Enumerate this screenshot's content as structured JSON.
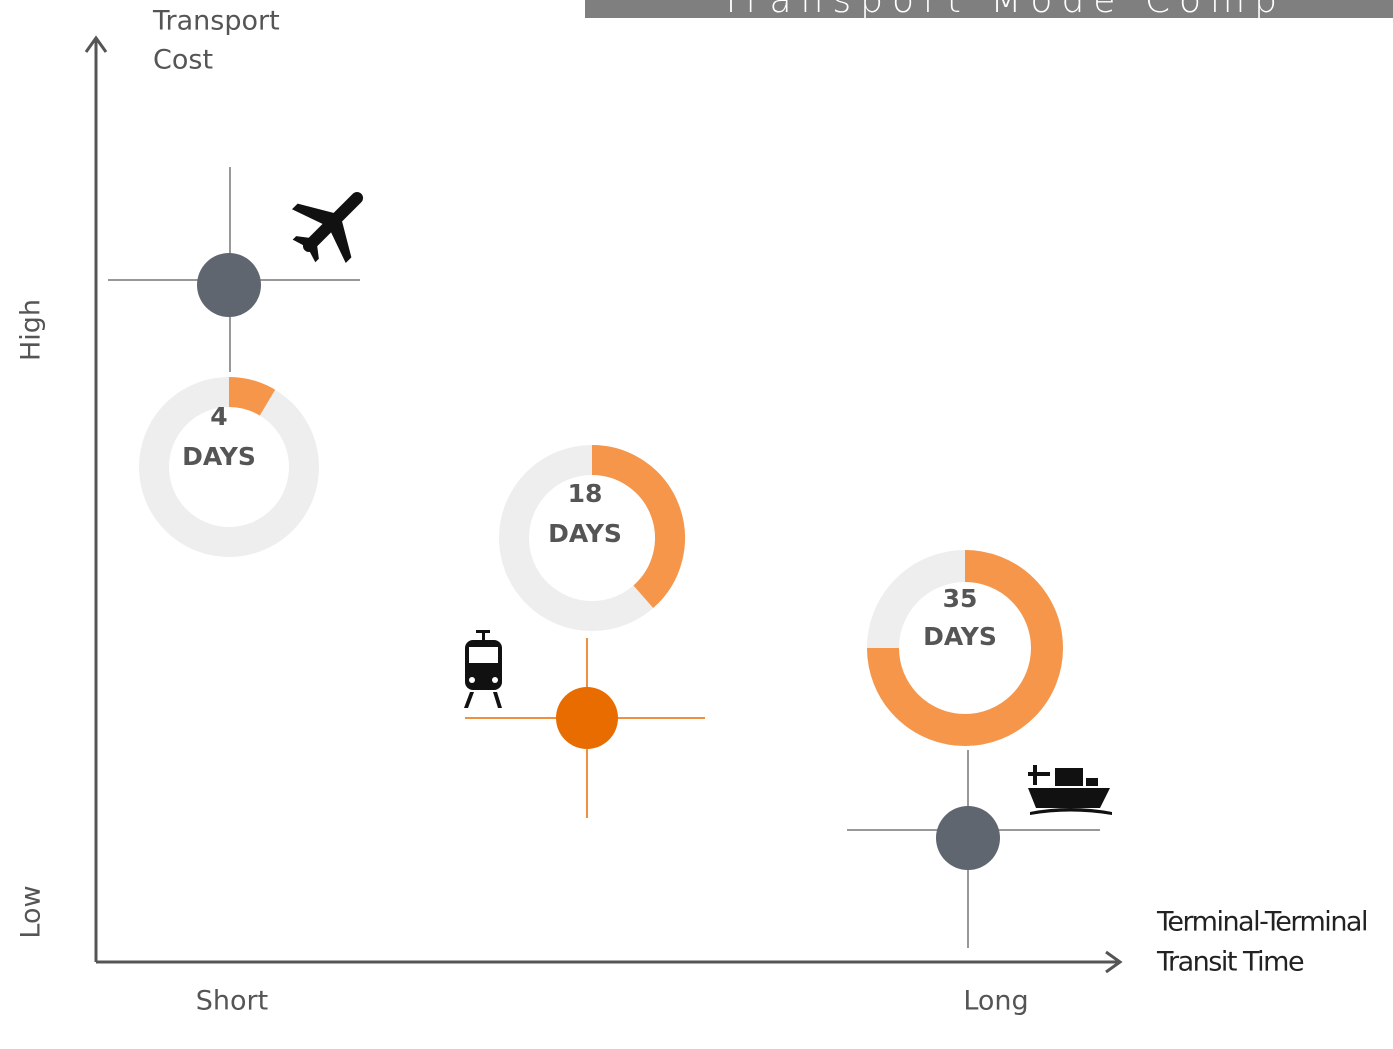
{
  "title": "Transport Mode Comp",
  "y_axis": {
    "label_lines": [
      "Transport",
      "Cost"
    ],
    "high": "High",
    "low": "Low"
  },
  "x_axis": {
    "label_lines": [
      "Terminal-Terminal",
      "Transit Time"
    ],
    "short": "Short",
    "long": "Long"
  },
  "modes": [
    {
      "days": 4,
      "unit": "DAYS"
    },
    {
      "days": 18,
      "unit": "DAYS"
    },
    {
      "days": 35,
      "unit": "DAYS"
    }
  ]
}
